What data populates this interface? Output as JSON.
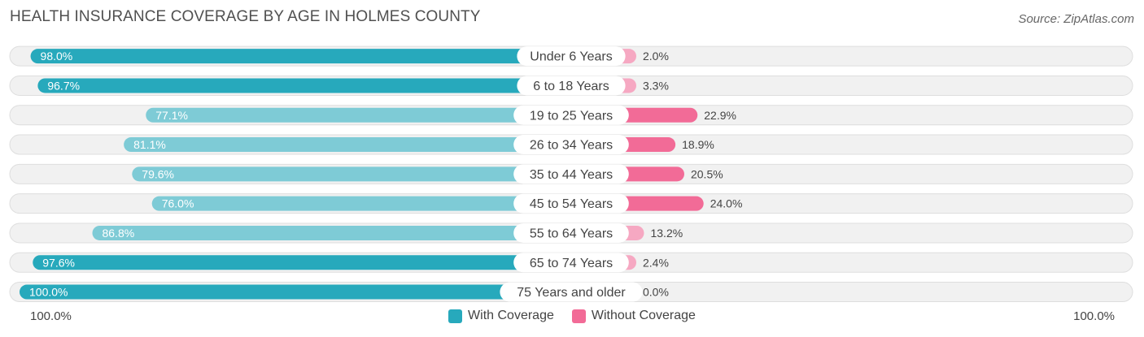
{
  "title": "HEALTH INSURANCE COVERAGE BY AGE IN HOLMES COUNTY",
  "source": "Source: ZipAtlas.com",
  "colors": {
    "with_strong": "#27a9bc",
    "with_light": "#7ecbd6",
    "without_strong": "#f26b97",
    "without_light": "#f6a8c2",
    "row_bg": "#f1f1f1",
    "row_border": "#dedede"
  },
  "axis": {
    "left_label": "100.0%",
    "right_label": "100.0%"
  },
  "legend": {
    "with_label": "With Coverage",
    "without_label": "Without Coverage"
  },
  "chart_data": {
    "type": "bar",
    "orientation": "horizontal-diverging",
    "title": "HEALTH INSURANCE COVERAGE BY AGE IN HOLMES COUNTY",
    "categories": [
      "Under 6 Years",
      "6 to 18 Years",
      "19 to 25 Years",
      "26 to 34 Years",
      "35 to 44 Years",
      "45 to 54 Years",
      "55 to 64 Years",
      "65 to 74 Years",
      "75 Years and older"
    ],
    "series": [
      {
        "name": "With Coverage",
        "values": [
          98.0,
          96.7,
          77.1,
          81.1,
          79.6,
          76.0,
          86.8,
          97.6,
          100.0
        ],
        "labels": [
          "98.0%",
          "96.7%",
          "77.1%",
          "81.1%",
          "79.6%",
          "76.0%",
          "86.8%",
          "97.6%",
          "100.0%"
        ]
      },
      {
        "name": "Without Coverage",
        "values": [
          2.0,
          3.3,
          22.9,
          18.9,
          20.5,
          24.0,
          13.2,
          2.4,
          0.0
        ],
        "labels": [
          "2.0%",
          "3.3%",
          "22.9%",
          "18.9%",
          "20.5%",
          "24.0%",
          "13.2%",
          "2.4%",
          "0.0%"
        ]
      }
    ],
    "xlim": [
      0,
      100
    ],
    "legend_position": "bottom-center"
  }
}
